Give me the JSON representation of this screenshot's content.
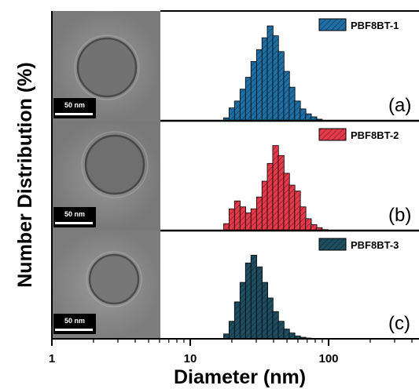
{
  "chart_data": {
    "type": "bar",
    "xscale": "log",
    "xlim": [
      1,
      450
    ],
    "xticks": [
      "1",
      "10",
      "100"
    ],
    "xlabel": "Diameter (nm)",
    "ylabel": "Number Distribution (%)",
    "bin_width_log10": 0.0417,
    "panels": [
      {
        "tag": "(a)",
        "legend": "PBF8BT-1",
        "color": "#1f6ea4",
        "scale_bar": "50 nm",
        "bins": [
          18.3,
          20.0,
          21.9,
          24.0,
          26.3,
          28.8,
          31.6,
          34.6,
          37.8,
          41.4,
          45.4,
          49.7,
          54.4,
          59.6,
          65.3,
          71.5,
          78.3,
          85.7
        ],
        "values": [
          1.5,
          6.5,
          10,
          16,
          22,
          30,
          36,
          42,
          48,
          43,
          35,
          25,
          17,
          10,
          6,
          3.5,
          2,
          0.8
        ]
      },
      {
        "tag": "(b)",
        "legend": "PBF8BT-2",
        "color": "#e23a4a",
        "scale_bar": "50 nm",
        "bins": [
          18.3,
          20.0,
          21.9,
          24.0,
          26.3,
          28.8,
          31.6,
          34.6,
          37.8,
          41.4,
          45.4,
          49.7,
          54.4,
          59.6,
          65.3,
          71.5,
          78.3,
          85.7,
          93.9
        ],
        "values": [
          3.5,
          11,
          15,
          12,
          9,
          11,
          17,
          25,
          34,
          43,
          38,
          29,
          23,
          20,
          12,
          6,
          3,
          1.5,
          0.5
        ]
      },
      {
        "tag": "(c)",
        "legend": "PBF8BT-3",
        "color": "#1e4d60",
        "scale_bar": "50 nm",
        "bins": [
          18.3,
          20.0,
          21.9,
          24.0,
          26.3,
          28.8,
          31.6,
          34.6,
          37.8,
          41.4,
          45.4,
          49.7,
          54.4,
          59.6,
          65.3,
          71.5,
          78.3
        ],
        "values": [
          2.5,
          9,
          19,
          29,
          39,
          43,
          37,
          29,
          21,
          14,
          9,
          5,
          3,
          1.5,
          0.8,
          0.4,
          0.2
        ]
      }
    ]
  }
}
